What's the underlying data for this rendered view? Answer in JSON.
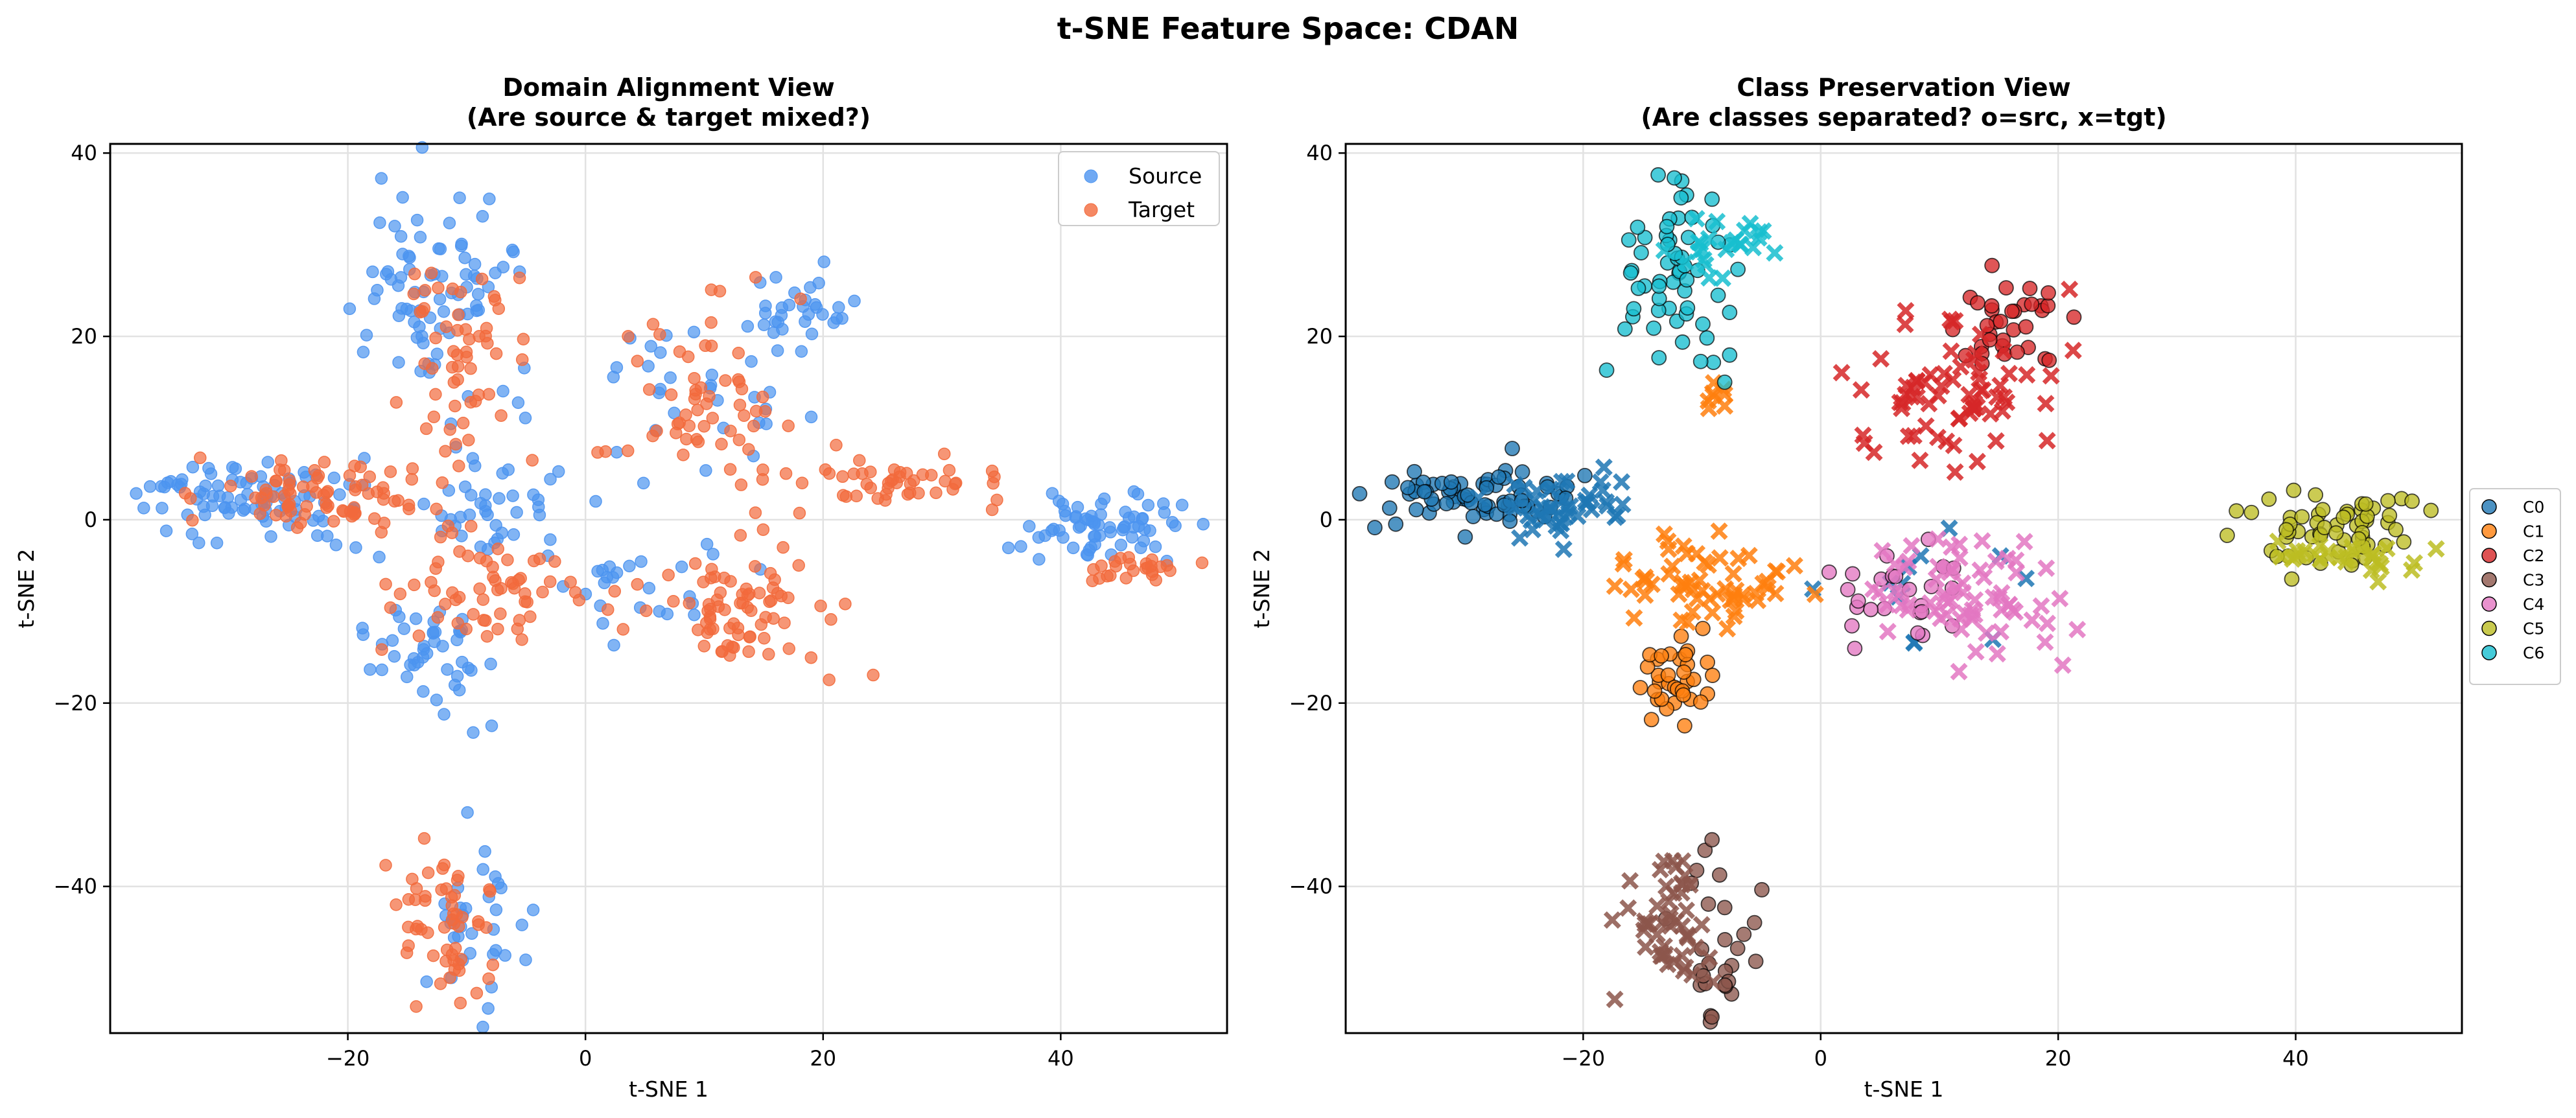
{
  "figure": {
    "title": "t-SNE Feature Space: CDAN"
  },
  "chart_data": [
    {
      "type": "scatter",
      "title": "Domain Alignment View\n(Are source & target mixed?)",
      "xlabel": "t-SNE 1",
      "ylabel": "t-SNE 2",
      "xlim": [
        -40,
        54
      ],
      "ylim": [
        -56,
        41
      ],
      "xticks": [
        -20,
        0,
        20,
        40
      ],
      "yticks": [
        -40,
        -20,
        0,
        20,
        40
      ],
      "grid": true,
      "legend_position": "top-right",
      "series": [
        {
          "name": "Source",
          "color": "#4c94f0",
          "marker": "circle",
          "clusters": [
            {
              "cx": -28,
              "cy": 2.5,
              "sx": 5.5,
              "sy": 2.0,
              "n": 90
            },
            {
              "cx": -12,
              "cy": 25,
              "sx": 3.5,
              "sy": 6.0,
              "n": 80
            },
            {
              "cx": -13,
              "cy": -15,
              "sx": 3.0,
              "sy": 3.0,
              "n": 45
            },
            {
              "cx": -8,
              "cy": 2,
              "sx": 4.0,
              "sy": 3.5,
              "n": 40
            },
            {
              "cx": 17,
              "cy": 22,
              "sx": 3.0,
              "sy": 3.0,
              "n": 35
            },
            {
              "cx": 8,
              "cy": 12,
              "sx": 5.0,
              "sy": 5.0,
              "n": 30
            },
            {
              "cx": 43,
              "cy": -1,
              "sx": 4.5,
              "sy": 2.0,
              "n": 70
            },
            {
              "cx": -9,
              "cy": -45,
              "sx": 2.0,
              "sy": 5.0,
              "n": 35
            },
            {
              "cx": 5,
              "cy": -8,
              "sx": 4.0,
              "sy": 3.0,
              "n": 25
            }
          ]
        },
        {
          "name": "Target",
          "color": "#f26a3c",
          "marker": "circle",
          "clusters": [
            {
              "cx": -22,
              "cy": 3,
              "sx": 5.0,
              "sy": 1.8,
              "n": 80
            },
            {
              "cx": -11,
              "cy": 20,
              "sx": 3.0,
              "sy": 7.0,
              "n": 55
            },
            {
              "cx": -8,
              "cy": -8,
              "sx": 4.0,
              "sy": 3.5,
              "n": 60
            },
            {
              "cx": 12,
              "cy": -9,
              "sx": 4.0,
              "sy": 4.0,
              "n": 80
            },
            {
              "cx": 10,
              "cy": 14,
              "sx": 3.5,
              "sy": 5.0,
              "n": 60
            },
            {
              "cx": 28,
              "cy": 4,
              "sx": 4.0,
              "sy": 1.5,
              "n": 45
            },
            {
              "cx": -12,
              "cy": -44,
              "sx": 2.0,
              "sy": 4.0,
              "n": 55
            },
            {
              "cx": 45,
              "cy": -5,
              "sx": 3.0,
              "sy": 1.0,
              "n": 25
            }
          ]
        }
      ]
    },
    {
      "type": "scatter",
      "title": "Class Preservation View\n(Are classes separated? o=src, x=tgt)",
      "xlabel": "t-SNE 1",
      "ylabel": "t-SNE 2",
      "xlim": [
        -40,
        54
      ],
      "ylim": [
        -56,
        41
      ],
      "xticks": [
        -20,
        0,
        20,
        40
      ],
      "yticks": [
        -40,
        -20,
        0,
        20,
        40
      ],
      "grid": true,
      "legend_position": "outside-right",
      "series": [
        {
          "name": "C0",
          "color": "#1f77b4",
          "clusters": [
            {
              "cx": -29,
              "cy": 2.5,
              "sx": 4.5,
              "sy": 2.0,
              "n": 70,
              "m": "o"
            },
            {
              "cx": -22,
              "cy": 2,
              "sx": 3.0,
              "sy": 2.0,
              "n": 45,
              "m": "x"
            },
            {
              "cx": 8,
              "cy": -6,
              "sx": 4.0,
              "sy": 3.0,
              "n": 12,
              "m": "x"
            }
          ]
        },
        {
          "name": "C1",
          "color": "#ff7f0e",
          "clusters": [
            {
              "cx": -12,
              "cy": -18,
              "sx": 1.5,
              "sy": 2.0,
              "n": 35,
              "m": "o"
            },
            {
              "cx": -10,
              "cy": -7,
              "sx": 3.5,
              "sy": 2.5,
              "n": 60,
              "m": "x"
            },
            {
              "cx": -9,
              "cy": 14,
              "sx": 1.0,
              "sy": 1.0,
              "n": 8,
              "m": "x"
            }
          ]
        },
        {
          "name": "C2",
          "color": "#d62728",
          "clusters": [
            {
              "cx": 16,
              "cy": 22,
              "sx": 3.0,
              "sy": 2.5,
              "n": 35,
              "m": "o"
            },
            {
              "cx": 11,
              "cy": 15,
              "sx": 4.0,
              "sy": 4.0,
              "n": 70,
              "m": "x"
            }
          ]
        },
        {
          "name": "C3",
          "color": "#8c564b",
          "clusters": [
            {
              "cx": -9,
              "cy": -45,
              "sx": 2.0,
              "sy": 5.0,
              "n": 30,
              "m": "o"
            },
            {
              "cx": -12,
              "cy": -44,
              "sx": 2.0,
              "sy": 4.0,
              "n": 50,
              "m": "x"
            }
          ]
        },
        {
          "name": "C4",
          "color": "#e377c2",
          "clusters": [
            {
              "cx": 7,
              "cy": -8,
              "sx": 3.0,
              "sy": 2.5,
              "n": 25,
              "m": "o"
            },
            {
              "cx": 12,
              "cy": -8,
              "sx": 4.0,
              "sy": 3.5,
              "n": 70,
              "m": "x"
            }
          ]
        },
        {
          "name": "C5",
          "color": "#bcbd22",
          "clusters": [
            {
              "cx": 44,
              "cy": -1,
              "sx": 4.0,
              "sy": 2.0,
              "n": 60,
              "m": "o"
            },
            {
              "cx": 44,
              "cy": -4,
              "sx": 3.0,
              "sy": 1.0,
              "n": 30,
              "m": "x"
            }
          ]
        },
        {
          "name": "C6",
          "color": "#17becf",
          "clusters": [
            {
              "cx": -12,
              "cy": 27,
              "sx": 2.5,
              "sy": 5.0,
              "n": 60,
              "m": "o"
            },
            {
              "cx": -8,
              "cy": 30,
              "sx": 2.0,
              "sy": 2.0,
              "n": 25,
              "m": "x"
            }
          ]
        }
      ]
    }
  ]
}
